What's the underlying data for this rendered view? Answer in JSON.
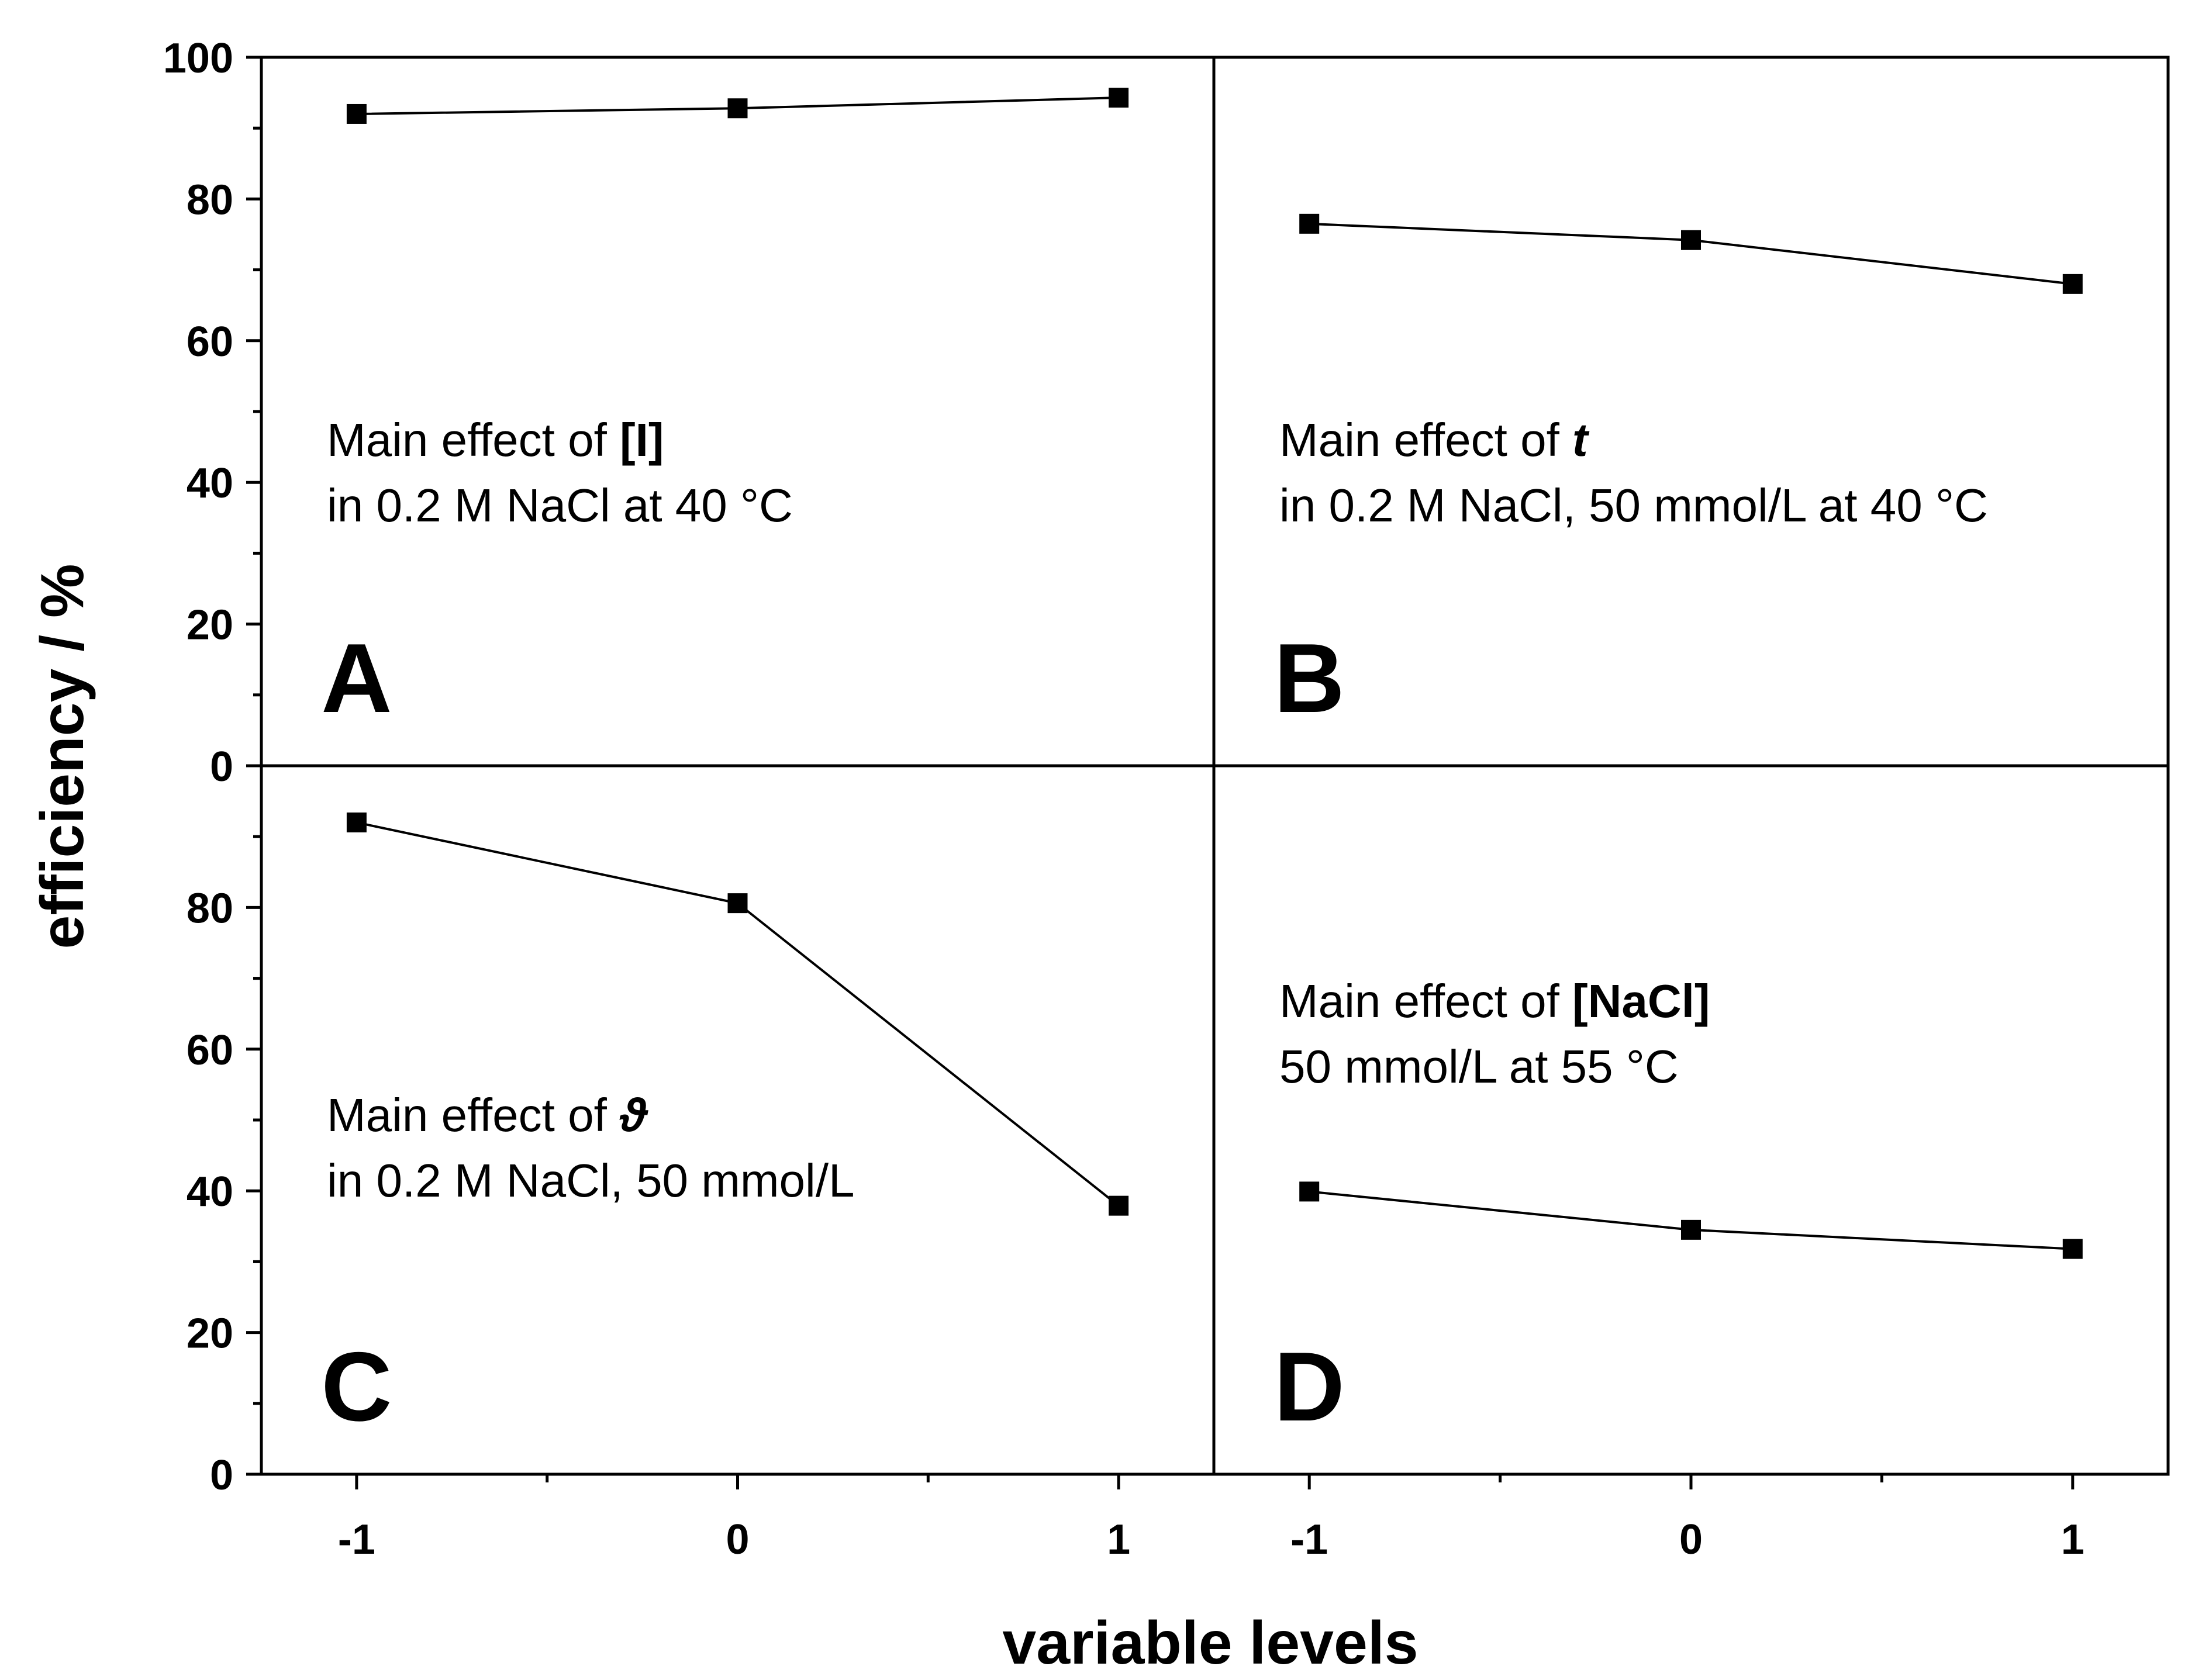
{
  "chart_data": {
    "type": "line",
    "xlabel": "variable levels",
    "ylabel": "efficiency / %",
    "ylim": [
      0,
      100
    ],
    "yticks": [
      0,
      20,
      40,
      60,
      80,
      100
    ],
    "xticks": [
      -1,
      0,
      1
    ],
    "xtick_labels": [
      "-1",
      "0",
      "1"
    ],
    "color": "#000000",
    "panels": [
      {
        "letter": "A",
        "x": [
          -1,
          0,
          1
        ],
        "values": [
          92,
          92.8,
          94.3
        ],
        "annotation_line1": "Main effect of ",
        "annotation_var": "[I]",
        "annotation_line2": "in 0.2 M NaCl at 40 °C"
      },
      {
        "letter": "B",
        "x": [
          -1,
          0,
          1
        ],
        "values": [
          76.5,
          74.2,
          68
        ],
        "annotation_line1": "Main effect of ",
        "annotation_var": "t",
        "annotation_line2": "in 0.2 M NaCl, 50 mmol/L at 40 °C"
      },
      {
        "letter": "C",
        "x": [
          -1,
          0,
          1
        ],
        "values": [
          92,
          80.6,
          37.9
        ],
        "annotation_line1": "Main effect of ",
        "annotation_var": "ϑ",
        "annotation_line2": "in 0.2 M NaCl, 50 mmol/L"
      },
      {
        "letter": "D",
        "x": [
          -1,
          0,
          1
        ],
        "values": [
          39.9,
          34.5,
          31.8
        ],
        "annotation_line1": "Main effect of ",
        "annotation_var": "[NaCl]",
        "annotation_line2": "50 mmol/L at 55 °C"
      }
    ]
  }
}
